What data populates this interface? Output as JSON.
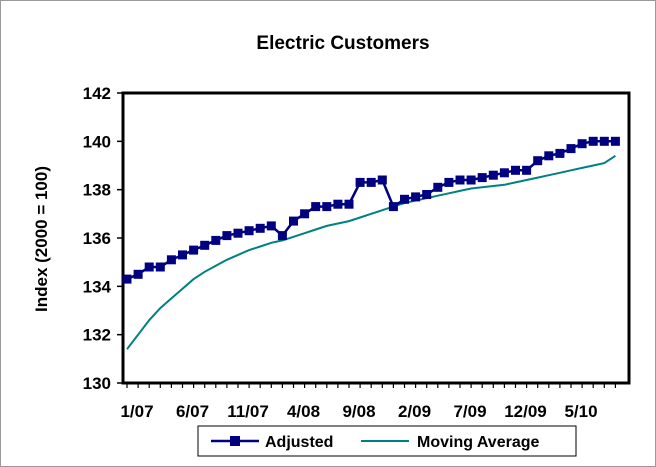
{
  "chart_data": {
    "type": "line",
    "title": "Electric Customers",
    "xlabel": "",
    "ylabel": "Index (2000 = 100)",
    "ylim": [
      130,
      142
    ],
    "yticks": [
      130,
      132,
      134,
      136,
      138,
      140,
      142
    ],
    "x_tick_labels": [
      "1/07",
      "6/07",
      "11/07",
      "4/08",
      "9/08",
      "2/09",
      "7/09",
      "12/09",
      "5/10"
    ],
    "grid": false,
    "legend_position": "bottom",
    "series": [
      {
        "name": "Adjusted",
        "color": "#000080",
        "marker": "square",
        "values": [
          134.3,
          134.5,
          134.8,
          134.8,
          135.1,
          135.3,
          135.5,
          135.7,
          135.9,
          136.1,
          136.2,
          136.3,
          136.4,
          136.5,
          136.1,
          136.7,
          137.0,
          137.3,
          137.3,
          137.4,
          137.4,
          138.3,
          138.3,
          138.4,
          137.3,
          137.6,
          137.7,
          137.8,
          138.1,
          138.3,
          138.4,
          138.4,
          138.5,
          138.6,
          138.7,
          138.8,
          138.8,
          139.2,
          139.4,
          139.5,
          139.7,
          139.9,
          140.0,
          140.0,
          140.0
        ]
      },
      {
        "name": "Moving Average",
        "color": "#008080",
        "marker": "none",
        "values": [
          131.4,
          132.0,
          132.6,
          133.1,
          133.5,
          133.9,
          134.3,
          134.6,
          134.85,
          135.1,
          135.3,
          135.5,
          135.65,
          135.8,
          135.9,
          136.05,
          136.2,
          136.35,
          136.5,
          136.6,
          136.7,
          136.85,
          137.0,
          137.15,
          137.3,
          137.45,
          137.55,
          137.65,
          137.75,
          137.85,
          137.95,
          138.05,
          138.1,
          138.15,
          138.2,
          138.3,
          138.4,
          138.5,
          138.6,
          138.7,
          138.8,
          138.9,
          139.0,
          139.1,
          139.4
        ]
      }
    ]
  }
}
